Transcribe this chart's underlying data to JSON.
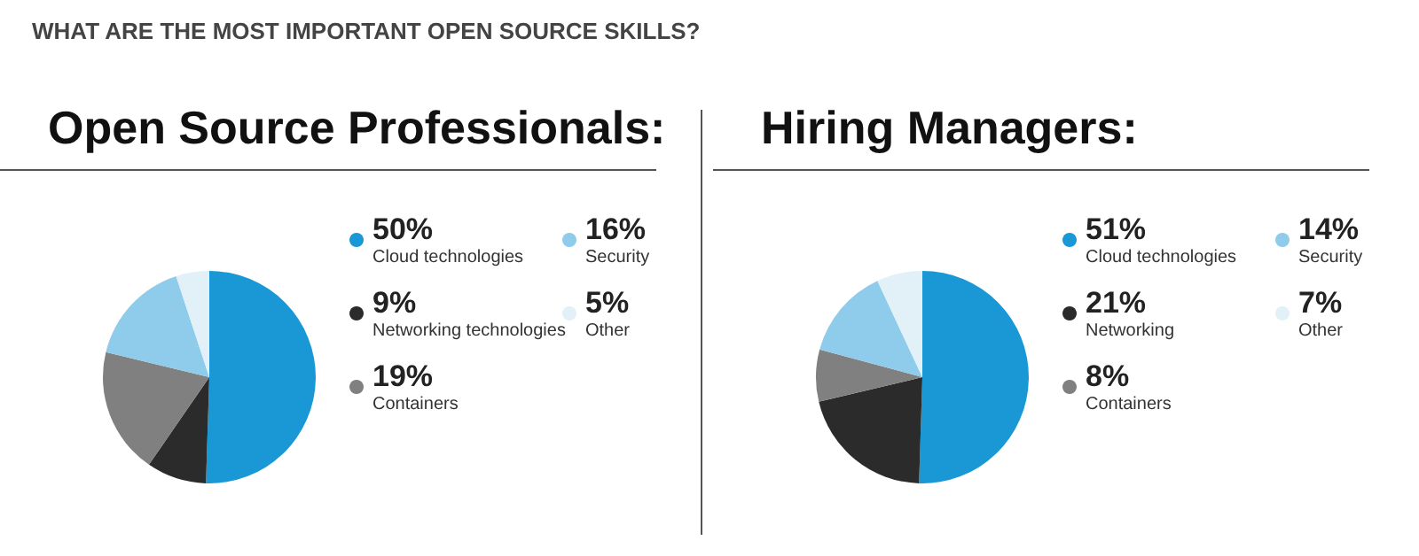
{
  "chart_data": [
    {
      "type": "pie",
      "title": "Open Source Professionals:",
      "annotations": [
        "WHAT ARE THE MOST IMPORTANT OPEN SOURCE SKILLS?"
      ],
      "categories": [
        "Cloud technologies",
        "Networking technologies",
        "Containers",
        "Security",
        "Other"
      ],
      "values": [
        50,
        9,
        19,
        16,
        5
      ],
      "value_labels": [
        "50%",
        "9%",
        "19%",
        "16%",
        "5%"
      ],
      "colors": [
        "#1a98d5",
        "#2b2b2b",
        "#808080",
        "#8fcbea",
        "#e2f0f8"
      ],
      "legend": "right"
    },
    {
      "type": "pie",
      "title": "Hiring Managers:",
      "categories": [
        "Cloud technologies",
        "Networking",
        "Containers",
        "Security",
        "Other"
      ],
      "values": [
        51,
        21,
        8,
        14,
        7
      ],
      "value_labels": [
        "51%",
        "21%",
        "8%",
        "14%",
        "7%"
      ],
      "colors": [
        "#1a98d5",
        "#2b2b2b",
        "#808080",
        "#8fcbea",
        "#e2f0f8"
      ],
      "legend": "right"
    }
  ]
}
